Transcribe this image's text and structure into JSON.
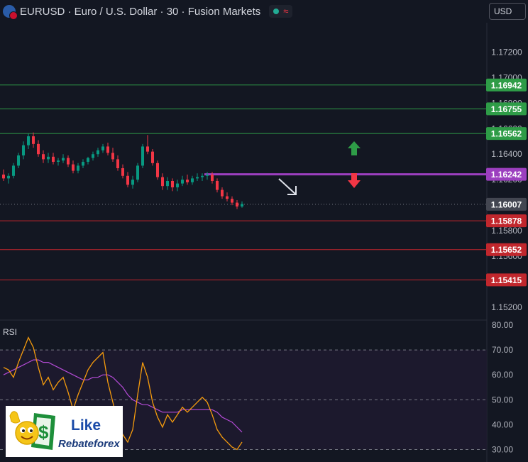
{
  "header": {
    "title": "EURUSD · Euro / U.S. Dollar · 30 · Fusion Markets",
    "currency": "USD"
  },
  "price_axis": {
    "ticks": [
      "1.17200",
      "1.17000",
      "1.16800",
      "1.16600",
      "1.16400",
      "1.16200",
      "1.16000",
      "1.15800",
      "1.15600",
      "1.15200"
    ]
  },
  "levels": [
    {
      "value": 1.16942,
      "label": "1.16942",
      "kind": "resistance",
      "color": "#2e9c47"
    },
    {
      "value": 1.16755,
      "label": "1.16755",
      "kind": "resistance",
      "color": "#2e9c47"
    },
    {
      "value": 1.16562,
      "label": "1.16562",
      "kind": "resistance",
      "color": "#2e9c47"
    },
    {
      "value": 1.16242,
      "label": "1.16242",
      "kind": "pivot",
      "color": "#9c3fbf"
    },
    {
      "value": 1.16007,
      "label": "1.16007",
      "kind": "last-price",
      "color": "#434651"
    },
    {
      "value": 1.15878,
      "label": "1.15878",
      "kind": "support",
      "color": "#c1272d"
    },
    {
      "value": 1.15652,
      "label": "1.15652",
      "kind": "support",
      "color": "#c1272d"
    },
    {
      "value": 1.15415,
      "label": "1.15415",
      "kind": "support",
      "color": "#c1272d"
    }
  ],
  "rsi": {
    "label": "RSI",
    "ticks": [
      "80.00",
      "70.00",
      "60.00",
      "50.00",
      "40.00",
      "30.00"
    ]
  },
  "logo": {
    "line1": "Like",
    "line2": "Rebateforex"
  },
  "colors": {
    "up": "#089981",
    "down": "#f23645",
    "rsi_line": "#f59b0d",
    "rsi_ma": "#b44bd6"
  },
  "chart_data": {
    "type": "candlestick",
    "candles": [
      [
        1.1624,
        1.1628,
        1.1619,
        1.1621
      ],
      [
        1.1621,
        1.1625,
        1.1617,
        1.1623
      ],
      [
        1.1623,
        1.1633,
        1.1621,
        1.1631
      ],
      [
        1.1631,
        1.1641,
        1.1629,
        1.1639
      ],
      [
        1.1639,
        1.165,
        1.1636,
        1.1647
      ],
      [
        1.1647,
        1.1656,
        1.1644,
        1.1654
      ],
      [
        1.1654,
        1.1657,
        1.1645,
        1.1648
      ],
      [
        1.1648,
        1.1651,
        1.1638,
        1.164
      ],
      [
        1.164,
        1.1643,
        1.1633,
        1.1636
      ],
      [
        1.1636,
        1.1641,
        1.1633,
        1.1638
      ],
      [
        1.1638,
        1.1641,
        1.1632,
        1.1634
      ],
      [
        1.1634,
        1.1637,
        1.1631,
        1.1635
      ],
      [
        1.1635,
        1.164,
        1.1633,
        1.1637
      ],
      [
        1.1637,
        1.1639,
        1.163,
        1.1632
      ],
      [
        1.1632,
        1.1635,
        1.1625,
        1.1627
      ],
      [
        1.1627,
        1.1633,
        1.1625,
        1.1631
      ],
      [
        1.1631,
        1.1636,
        1.1629,
        1.1634
      ],
      [
        1.1634,
        1.1638,
        1.1632,
        1.1637
      ],
      [
        1.1637,
        1.1642,
        1.1635,
        1.164
      ],
      [
        1.164,
        1.1645,
        1.1638,
        1.1643
      ],
      [
        1.1643,
        1.1648,
        1.1641,
        1.1646
      ],
      [
        1.1646,
        1.1649,
        1.1639,
        1.1641
      ],
      [
        1.1641,
        1.1645,
        1.1634,
        1.1636
      ],
      [
        1.1636,
        1.1639,
        1.1627,
        1.1629
      ],
      [
        1.1629,
        1.1632,
        1.1621,
        1.1623
      ],
      [
        1.1623,
        1.1626,
        1.1614,
        1.1616
      ],
      [
        1.1616,
        1.1623,
        1.1613,
        1.162
      ],
      [
        1.162,
        1.1633,
        1.1618,
        1.1631
      ],
      [
        1.1631,
        1.1648,
        1.1629,
        1.1646
      ],
      [
        1.1646,
        1.1655,
        1.164,
        1.1642
      ],
      [
        1.1642,
        1.1644,
        1.1631,
        1.1633
      ],
      [
        1.1633,
        1.1635,
        1.162,
        1.1622
      ],
      [
        1.1622,
        1.1625,
        1.1612,
        1.1615
      ],
      [
        1.1615,
        1.1622,
        1.1612,
        1.1619
      ],
      [
        1.1619,
        1.1621,
        1.1611,
        1.1614
      ],
      [
        1.1614,
        1.162,
        1.1611,
        1.1617
      ],
      [
        1.1617,
        1.1623,
        1.1615,
        1.162
      ],
      [
        1.162,
        1.1624,
        1.1616,
        1.1618
      ],
      [
        1.1618,
        1.1623,
        1.1616,
        1.1621
      ],
      [
        1.1621,
        1.1625,
        1.1619,
        1.1622
      ],
      [
        1.1622,
        1.1625,
        1.1619,
        1.1623
      ],
      [
        1.1623,
        1.1626,
        1.162,
        1.1624
      ],
      [
        1.1624,
        1.1626,
        1.1617,
        1.1619
      ],
      [
        1.1619,
        1.1621,
        1.161,
        1.1612
      ],
      [
        1.1612,
        1.1614,
        1.1605,
        1.1607
      ],
      [
        1.1607,
        1.161,
        1.1603,
        1.1605
      ],
      [
        1.1605,
        1.1607,
        1.16,
        1.1602
      ],
      [
        1.1602,
        1.1604,
        1.1597,
        1.1599
      ],
      [
        1.1599,
        1.1603,
        1.1598,
        1.1601
      ]
    ],
    "rsi_values": [
      63,
      62,
      59,
      65,
      70,
      75,
      71,
      63,
      56,
      59,
      54,
      57,
      59,
      53,
      46,
      52,
      57,
      62,
      65,
      67,
      69,
      57,
      49,
      41,
      36,
      33,
      38,
      52,
      65,
      59,
      49,
      43,
      39,
      44,
      41,
      44,
      47,
      45,
      47,
      49,
      51,
      49,
      44,
      38,
      35,
      33,
      31,
      30,
      33
    ],
    "rsi_ma_values": [
      60,
      61,
      62,
      63,
      64,
      65,
      66,
      66,
      65,
      65,
      64,
      63,
      62,
      61,
      60,
      59,
      58,
      58,
      59,
      59,
      60,
      60,
      59,
      57,
      55,
      52,
      50,
      49,
      48,
      48,
      47,
      46,
      45,
      45,
      45,
      45,
      46,
      46,
      46,
      46,
      46,
      46,
      46,
      45,
      43,
      42,
      41,
      39,
      37
    ],
    "rsi_range": [
      25,
      82
    ],
    "price_range": [
      1.151,
      1.1743
    ]
  }
}
